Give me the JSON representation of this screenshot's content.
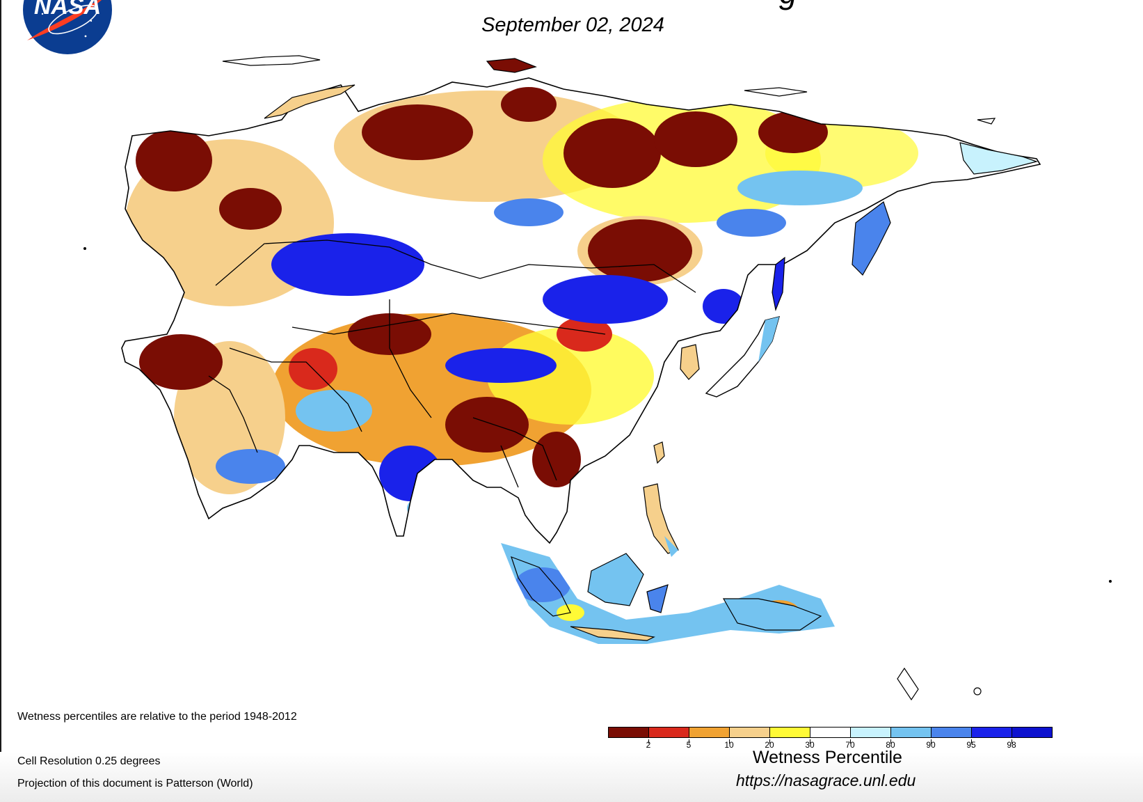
{
  "header": {
    "title_fragment": "g",
    "date": "September 02, 2024",
    "logo_text": "NASA"
  },
  "notes": {
    "baseline": "Wetness percentiles are relative to the period 1948-2012",
    "resolution": "Cell Resolution 0.25 degrees",
    "projection": "Projection of this document is Patterson (World)"
  },
  "legend": {
    "title": "Wetness Percentile",
    "tick_labels": [
      "2",
      "5",
      "10",
      "20",
      "30",
      "70",
      "80",
      "90",
      "95",
      "98"
    ],
    "colors": [
      "#7a0d04",
      "#d9291c",
      "#f0a232",
      "#f6d08c",
      "#fffa36",
      "#ffffff",
      "#c8f2fd",
      "#74c3f0",
      "#4a84ec",
      "#1a22ea",
      "#0d12cf"
    ]
  },
  "url": "https://nasagrace.unl.edu",
  "icons": {
    "logo": "nasa-meatball-icon"
  }
}
